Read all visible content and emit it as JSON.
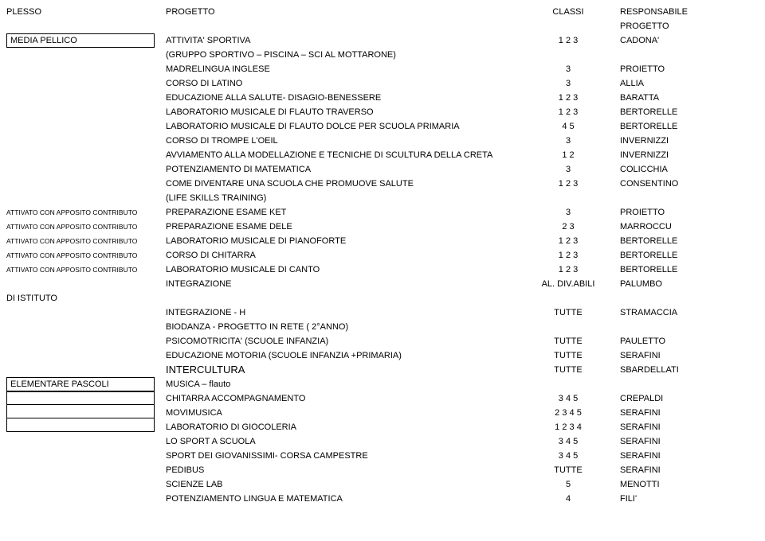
{
  "header": {
    "plesso": "PLESSO",
    "progetto": "PROGETTO",
    "classi": "CLASSI",
    "responsabile": "RESPONSABILE\nPROGETTO"
  },
  "mediaPellico": {
    "name": "MEDIA PELLICO",
    "r0": {
      "mid": "ATTIVITA' SPORTIVA",
      "cl": "1 2 3",
      "resp": "CADONA'"
    },
    "r1": {
      "mid": "(GRUPPO SPORTIVO – PISCINA – SCI AL MOTTARONE)"
    },
    "r2": {
      "mid": "MADRELINGUA INGLESE",
      "cl": "3",
      "resp": "PROIETTO"
    },
    "r3": {
      "mid": "CORSO DI LATINO",
      "cl": "3",
      "resp": "ALLIA"
    },
    "r4": {
      "mid": "EDUCAZIONE ALLA SALUTE- DISAGIO-BENESSERE",
      "cl": "1 2 3",
      "resp": "BARATTA"
    },
    "r5": {
      "mid": "LABORATORIO MUSICALE DI FLAUTO TRAVERSO",
      "cl": "1 2 3",
      "resp": "BERTORELLE"
    },
    "r6": {
      "mid": "LABORATORIO MUSICALE DI FLAUTO DOLCE PER SCUOLA PRIMARIA",
      "cl": "4 5",
      "resp": "BERTORELLE"
    },
    "r7": {
      "mid": "CORSO DI TROMPE L'OEIL",
      "cl": "3",
      "resp": "INVERNIZZI"
    },
    "r8": {
      "mid": "AVVIAMENTO ALLA MODELLAZIONE E TECNICHE DI SCULTURA DELLA CRETA",
      "cl": "1 2",
      "resp": "INVERNIZZI"
    },
    "r9": {
      "mid": "POTENZIAMENTO DI MATEMATICA",
      "cl": "3",
      "resp": "COLICCHIA"
    },
    "r10": {
      "mid": "COME DIVENTARE UNA SCUOLA CHE PROMUOVE SALUTE",
      "cl": "1 2 3",
      "resp": "CONSENTINO"
    },
    "r11": {
      "mid": "(LIFE SKILLS TRAINING)"
    }
  },
  "contrib": {
    "label": "ATTIVATO CON APPOSITO CONTRIBUTO",
    "c0": {
      "mid": "PREPARAZIONE ESAME KET",
      "cl": "3",
      "resp": "PROIETTO"
    },
    "c1": {
      "mid": "PREPARAZIONE ESAME DELE",
      "cl": "2 3",
      "resp": "MARROCCU"
    },
    "c2": {
      "mid": "LABORATORIO MUSICALE DI PIANOFORTE",
      "cl": "1 2 3",
      "resp": "BERTORELLE"
    },
    "c3": {
      "mid": "CORSO DI CHITARRA",
      "cl": "1 2 3",
      "resp": "BERTORELLE"
    },
    "c4": {
      "mid": "LABORATORIO MUSICALE DI CANTO",
      "cl": "1 2 3",
      "resp": "BERTORELLE"
    },
    "c5": {
      "mid": "INTEGRAZIONE",
      "cl": "AL. DIV.ABILI",
      "resp": "PALUMBO"
    }
  },
  "istituto": {
    "name": "DI ISTITUTO",
    "i0": {
      "mid": "INTEGRAZIONE  - H",
      "cl": "TUTTE",
      "resp": "STRAMACCIA"
    },
    "i1": {
      "mid": "BIODANZA - PROGETTO IN RETE ( 2°ANNO)"
    },
    "i2": {
      "mid": "PSICOMOTRICITA' (SCUOLE INFANZIA)",
      "cl": "TUTTE",
      "resp": "PAULETTO"
    },
    "i3": {
      "mid": "EDUCAZIONE MOTORIA (SCUOLE INFANZIA +PRIMARIA)",
      "cl": "TUTTE",
      "resp": "SERAFINI"
    },
    "i4": {
      "mid": "INTERCULTURA",
      "cl": "TUTTE",
      "resp": "SBARDELLATI"
    }
  },
  "pascoli": {
    "name": "ELEMENTARE PASCOLI",
    "p0": {
      "mid": "MUSICA – flauto"
    },
    "p1": {
      "mid": "CHITARRA ACCOMPAGNAMENTO",
      "cl": "3 4 5",
      "resp": "CREPALDI"
    },
    "p2": {
      "mid": "MOVIMUSICA",
      "cl": "2 3 4 5",
      "resp": "SERAFINI"
    },
    "p3": {
      "mid": "LABORATORIO DI GIOCOLERIA",
      "cl": "1 2 3 4",
      "resp": "SERAFINI"
    },
    "p4": {
      "mid": "LO SPORT A SCUOLA",
      "cl": "3 4 5",
      "resp": "SERAFINI"
    },
    "p5": {
      "mid": "SPORT DEI GIOVANISSIMI- CORSA CAMPESTRE",
      "cl": "3 4 5",
      "resp": "SERAFINI"
    },
    "p6": {
      "mid": "PEDIBUS",
      "cl": "TUTTE",
      "resp": "SERAFINI"
    },
    "p7": {
      "mid": "SCIENZE LAB",
      "cl": "5",
      "resp": "MENOTTI"
    },
    "p8": {
      "mid": "POTENZIAMENTO LINGUA E MATEMATICA",
      "cl": "4",
      "resp": "FILI'"
    }
  }
}
